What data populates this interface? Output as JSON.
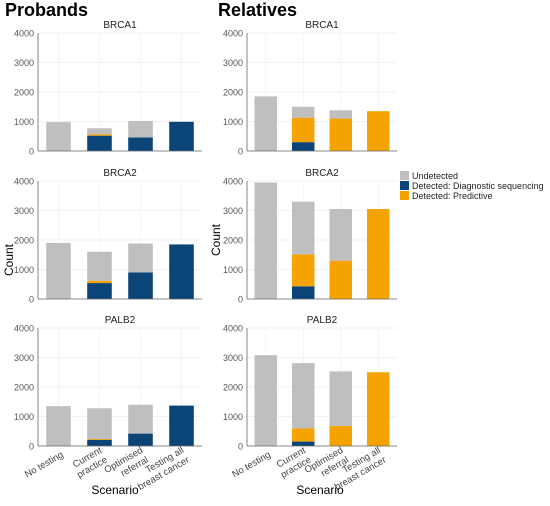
{
  "chart_data": {
    "type": "bar",
    "stacked": true,
    "column_titles": [
      "Probands",
      "Relatives"
    ],
    "categories": [
      "No testing",
      "Current practice",
      "Optimised referral",
      "Testing all breast cancer"
    ],
    "category_lines": [
      [
        "No testing"
      ],
      [
        "Current",
        "practice"
      ],
      [
        "Optimised",
        "referral"
      ],
      [
        "Testing all",
        "breast cancer"
      ]
    ],
    "xlabel": "Scenario",
    "ylabel": "Count",
    "ylim": [
      0,
      4000
    ],
    "yticks": [
      0,
      1000,
      2000,
      3000,
      4000
    ],
    "grid": true,
    "legend": {
      "placement": "right",
      "entries": [
        {
          "key": "undetected",
          "label": "Undetected",
          "color": "#bfbfbf"
        },
        {
          "key": "diagnostic",
          "label": "Detected: Diagnostic sequencing",
          "color": "#0b4477"
        },
        {
          "key": "predictive",
          "label": "Detected: Predictive",
          "color": "#f5a300"
        }
      ]
    },
    "panels": [
      {
        "column": "Probands",
        "gene": "BRCA1",
        "series": [
          {
            "key": "diagnostic",
            "values": [
              0,
              520,
              460,
              990
            ]
          },
          {
            "key": "predictive",
            "values": [
              0,
              50,
              0,
              0
            ]
          },
          {
            "key": "undetected",
            "values": [
              980,
              200,
              560,
              0
            ]
          }
        ]
      },
      {
        "column": "Probands",
        "gene": "BRCA2",
        "series": [
          {
            "key": "diagnostic",
            "values": [
              0,
              540,
              900,
              1850
            ]
          },
          {
            "key": "predictive",
            "values": [
              0,
              80,
              0,
              0
            ]
          },
          {
            "key": "undetected",
            "values": [
              1900,
              980,
              980,
              0
            ]
          }
        ]
      },
      {
        "column": "Probands",
        "gene": "PALB2",
        "series": [
          {
            "key": "diagnostic",
            "values": [
              0,
              210,
              420,
              1370
            ]
          },
          {
            "key": "predictive",
            "values": [
              0,
              30,
              0,
              0
            ]
          },
          {
            "key": "undetected",
            "values": [
              1350,
              1040,
              980,
              0
            ]
          }
        ]
      },
      {
        "column": "Relatives",
        "gene": "BRCA1",
        "series": [
          {
            "key": "diagnostic",
            "values": [
              0,
              300,
              0,
              0
            ]
          },
          {
            "key": "predictive",
            "values": [
              0,
              830,
              1100,
              1350
            ]
          },
          {
            "key": "undetected",
            "values": [
              1850,
              370,
              280,
              0
            ]
          }
        ]
      },
      {
        "column": "Relatives",
        "gene": "BRCA2",
        "series": [
          {
            "key": "diagnostic",
            "values": [
              0,
              430,
              0,
              0
            ]
          },
          {
            "key": "predictive",
            "values": [
              0,
              1080,
              1300,
              3050
            ]
          },
          {
            "key": "undetected",
            "values": [
              3950,
              1790,
              1750,
              0
            ]
          }
        ]
      },
      {
        "column": "Relatives",
        "gene": "PALB2",
        "series": [
          {
            "key": "diagnostic",
            "values": [
              0,
              150,
              0,
              0
            ]
          },
          {
            "key": "predictive",
            "values": [
              0,
              450,
              680,
              2500
            ]
          },
          {
            "key": "undetected",
            "values": [
              3080,
              2210,
              1850,
              0
            ]
          }
        ]
      }
    ]
  }
}
